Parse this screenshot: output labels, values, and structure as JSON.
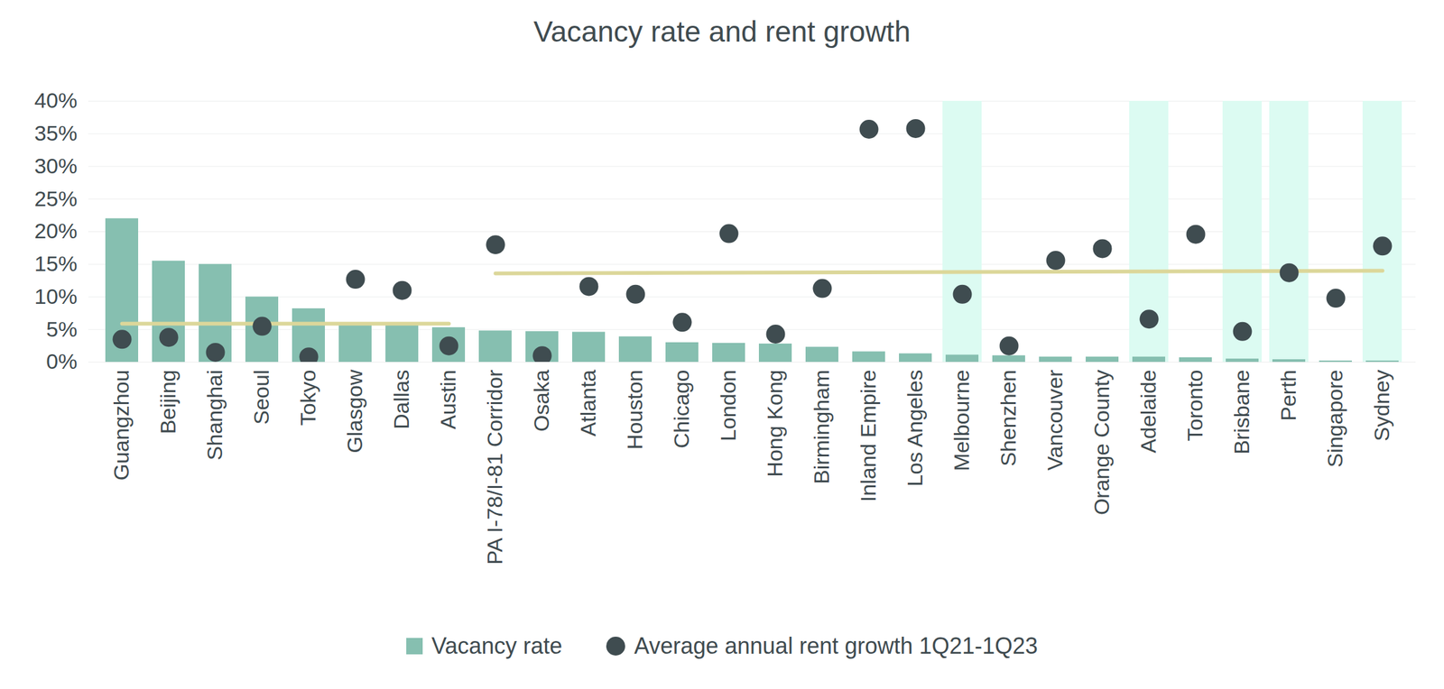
{
  "chart_data": {
    "type": "bar",
    "title": "Vacancy rate and rent growth",
    "categories": [
      "Guangzhou",
      "Beijing",
      "Shanghai",
      "Seoul",
      "Tokyo",
      "Glasgow",
      "Dallas",
      "Austin",
      "PA I-78/I-81 Corridor",
      "Osaka",
      "Atlanta",
      "Houston",
      "Chicago",
      "London",
      "Hong Kong",
      "Birmingham",
      "Inland Empire",
      "Los Angeles",
      "Melbourne",
      "Shenzhen",
      "Vancouver",
      "Orange County",
      "Adelaide",
      "Toronto",
      "Brisbane",
      "Perth",
      "Singapore",
      "Sydney"
    ],
    "series": [
      {
        "name": "Vacancy rate",
        "type": "bar",
        "color": "#86bfb0",
        "values": [
          22,
          15.5,
          15,
          10,
          8.2,
          6,
          6,
          5.3,
          4.8,
          4.7,
          4.6,
          3.9,
          3,
          2.9,
          2.8,
          2.3,
          1.6,
          1.3,
          1.1,
          1,
          0.8,
          0.8,
          0.8,
          0.7,
          0.5,
          0.4,
          0.2,
          0.2
        ]
      },
      {
        "name": "Average annual rent growth 1Q21-1Q23",
        "type": "scatter",
        "marker": "circle",
        "color": "#3f4c50",
        "values": [
          3.5,
          3.8,
          1.5,
          5.5,
          0.8,
          12.7,
          11,
          2.5,
          18,
          1,
          11.6,
          10.4,
          6.1,
          19.7,
          4.3,
          11.3,
          35.7,
          35.8,
          10.4,
          2.5,
          15.6,
          17.4,
          6.6,
          19.6,
          4.7,
          13.7,
          9.8,
          17.8
        ]
      }
    ],
    "reference_lines": [
      {
        "categories": [
          "Guangzhou",
          "Austin"
        ],
        "values": [
          5.9,
          5.9
        ],
        "color": "#dcd79a"
      },
      {
        "categories": [
          "PA I-78/I-81 Corridor",
          "Sydney"
        ],
        "values": [
          13.6,
          14.0
        ],
        "color": "#dcd79a"
      }
    ],
    "highlight": {
      "categories": [
        "Melbourne",
        "Adelaide",
        "Brisbane",
        "Perth",
        "Sydney"
      ],
      "color": "#dcfbf2"
    },
    "ylim": [
      0,
      40
    ],
    "yticks": [
      {
        "value": 0,
        "label": "0%"
      },
      {
        "value": 5,
        "label": "5%"
      },
      {
        "value": 10,
        "label": "10%"
      },
      {
        "value": 15,
        "label": "15%"
      },
      {
        "value": 20,
        "label": "20%"
      },
      {
        "value": 25,
        "label": "25%"
      },
      {
        "value": 30,
        "label": "30%"
      },
      {
        "value": 35,
        "label": "35%"
      },
      {
        "value": 40,
        "label": "40%"
      }
    ],
    "grid": true,
    "legend": "bottom"
  }
}
